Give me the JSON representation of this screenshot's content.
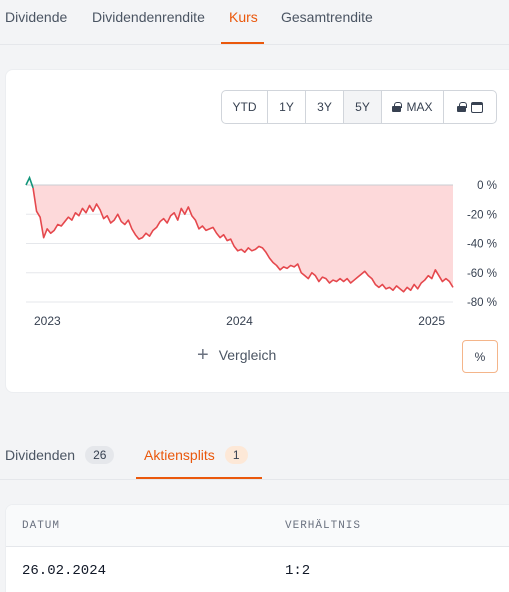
{
  "top_tabs": [
    "Dividende",
    "Dividendenrendite",
    "Kurs",
    "Gesamtrendite"
  ],
  "top_active": "Kurs",
  "ranges": [
    "YTD",
    "1Y",
    "3Y",
    "5Y",
    "MAX"
  ],
  "range_active": "5Y",
  "compare_label": "Vergleich",
  "percent_toggle": "%",
  "colors": {
    "accent": "#ea580c",
    "line": "#e5484d",
    "fill": "#fdd9da",
    "up": "#12957a"
  },
  "chart_data": {
    "type": "area",
    "x_labels": [
      "2023",
      "2024",
      "2025"
    ],
    "y_ticks": [
      "0 %",
      "-20 %",
      "-40 %",
      "-60 %",
      "-80 %"
    ],
    "ylim": [
      -80,
      0
    ],
    "y_ticks_values": [
      0,
      -20,
      -40,
      -60,
      -80
    ],
    "x_ticks_fraction": [
      0.05,
      0.5,
      0.95
    ],
    "grid": true,
    "series": [
      {
        "values": [
          0,
          5,
          -2,
          -18,
          -22,
          -36,
          -30,
          -33,
          -31,
          -27,
          -28,
          -25,
          -22,
          -24,
          -19,
          -21,
          -16,
          -19,
          -14,
          -18,
          -13,
          -17,
          -23,
          -21,
          -26,
          -24,
          -20,
          -25,
          -27,
          -24,
          -30,
          -34,
          -37,
          -36,
          -33,
          -35,
          -31,
          -29,
          -25,
          -23,
          -26,
          -21,
          -19,
          -24,
          -16,
          -20,
          -15,
          -21,
          -24,
          -30,
          -28,
          -31,
          -30,
          -29,
          -33,
          -36,
          -34,
          -38,
          -37,
          -42,
          -45,
          -44,
          -46,
          -43,
          -45,
          -44,
          -42,
          -43,
          -46,
          -50,
          -53,
          -55,
          -58,
          -56,
          -57,
          -55,
          -56,
          -54,
          -60,
          -62,
          -64,
          -60,
          -62,
          -66,
          -63,
          -64,
          -67,
          -65,
          -66,
          -64,
          -66,
          -64,
          -67,
          -65,
          -63,
          -61,
          -59,
          -62,
          -64,
          -68,
          -70,
          -68,
          -71,
          -70,
          -72,
          -69,
          -71,
          -73,
          -70,
          -72,
          -68,
          -71,
          -67,
          -65,
          -62,
          -64,
          -58,
          -62,
          -66,
          -64,
          -66,
          -70
        ]
      }
    ]
  },
  "low_tabs": [
    {
      "label": "Dividenden",
      "count": "26"
    },
    {
      "label": "Aktiensplits",
      "count": "1"
    }
  ],
  "low_active": "Aktiensplits",
  "table": {
    "headers": [
      "DATUM",
      "VERHÄLTNIS"
    ],
    "rows": [
      [
        "26.02.2024",
        "1:2"
      ]
    ]
  }
}
